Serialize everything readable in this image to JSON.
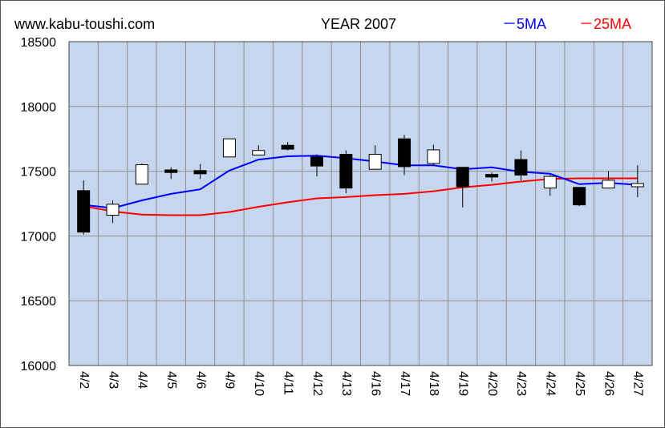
{
  "header": {
    "site": "www.kabu-toushi.com",
    "year_title": "YEAR 2007"
  },
  "chart_data": {
    "type": "candlestick",
    "title": "YEAR 2007",
    "ylim": [
      16000,
      18500
    ],
    "yticks": [
      "18500",
      "18000",
      "17500",
      "17000",
      "16500",
      "16000"
    ],
    "ytick_values": [
      18500,
      18000,
      17500,
      17000,
      16500,
      16000
    ],
    "grid": true,
    "legend": {
      "placement": "top-right",
      "entries": [
        "－5MA",
        "－25MA"
      ]
    },
    "colors": {
      "plot_bg": "#c6d6ee",
      "grid": "#8e8e8e",
      "ma5": "#0000ff",
      "ma25": "#ff0000",
      "bull_body": "#ffffff",
      "bear_body": "#000000"
    },
    "categories": [
      "4/2",
      "4/3",
      "4/4",
      "4/5",
      "4/6",
      "4/9",
      "4/10",
      "4/11",
      "4/12",
      "4/13",
      "4/16",
      "4/17",
      "4/18",
      "4/19",
      "4/20",
      "4/23",
      "4/24",
      "4/25",
      "4/26",
      "4/27"
    ],
    "ohlc": [
      {
        "open": 17350,
        "high": 17430,
        "low": 17010,
        "close": 17030
      },
      {
        "open": 17160,
        "high": 17275,
        "low": 17100,
        "close": 17245
      },
      {
        "open": 17400,
        "high": 17560,
        "low": 17400,
        "close": 17550
      },
      {
        "open": 17510,
        "high": 17530,
        "low": 17440,
        "close": 17490
      },
      {
        "open": 17505,
        "high": 17555,
        "low": 17440,
        "close": 17480
      },
      {
        "open": 17610,
        "high": 17750,
        "low": 17610,
        "close": 17750
      },
      {
        "open": 17625,
        "high": 17700,
        "low": 17625,
        "close": 17660
      },
      {
        "open": 17700,
        "high": 17725,
        "low": 17660,
        "close": 17670
      },
      {
        "open": 17610,
        "high": 17630,
        "low": 17460,
        "close": 17540
      },
      {
        "open": 17630,
        "high": 17660,
        "low": 17330,
        "close": 17370
      },
      {
        "open": 17515,
        "high": 17700,
        "low": 17515,
        "close": 17630
      },
      {
        "open": 17750,
        "high": 17780,
        "low": 17470,
        "close": 17535
      },
      {
        "open": 17560,
        "high": 17705,
        "low": 17545,
        "close": 17665
      },
      {
        "open": 17530,
        "high": 17530,
        "low": 17220,
        "close": 17380
      },
      {
        "open": 17475,
        "high": 17490,
        "low": 17420,
        "close": 17455
      },
      {
        "open": 17590,
        "high": 17660,
        "low": 17430,
        "close": 17470
      },
      {
        "open": 17370,
        "high": 17470,
        "low": 17310,
        "close": 17460
      },
      {
        "open": 17375,
        "high": 17375,
        "low": 17230,
        "close": 17240
      },
      {
        "open": 17370,
        "high": 17500,
        "low": 17370,
        "close": 17430
      },
      {
        "open": 17380,
        "high": 17545,
        "low": 17300,
        "close": 17405
      }
    ],
    "series": [
      {
        "name": "5MA",
        "values": [
          17240,
          17215,
          17275,
          17325,
          17360,
          17505,
          17590,
          17615,
          17620,
          17600,
          17575,
          17545,
          17545,
          17515,
          17530,
          17495,
          17480,
          17400,
          17410,
          17395
        ]
      },
      {
        "name": "25MA",
        "values": [
          17230,
          17190,
          17165,
          17160,
          17160,
          17185,
          17225,
          17260,
          17290,
          17300,
          17315,
          17325,
          17345,
          17375,
          17395,
          17420,
          17440,
          17445,
          17445,
          17445
        ]
      }
    ]
  }
}
